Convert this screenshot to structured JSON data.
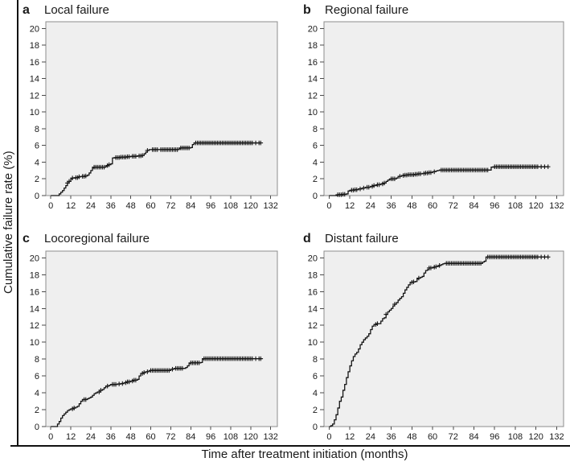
{
  "figure": {
    "y_axis_title": "Cumulative failure rate (%)",
    "x_axis_title": "Time after treatment initiation (months)",
    "colors": {
      "plot_bg": "#efefef",
      "frame": "#8c8c8c",
      "curve": "#151515",
      "tick": "#4a4a4a",
      "text": "#1a1a1a",
      "rule": "#111111"
    }
  },
  "chart_data": [
    {
      "type": "line",
      "style": "step-after",
      "panel_label": "a",
      "title": "Local failure",
      "xlabel": "Time after treatment initiation (months)",
      "ylabel": "Cumulative failure rate (%)",
      "xlim": [
        -3,
        136
      ],
      "ylim": [
        0,
        20.8
      ],
      "xticks": [
        0,
        12,
        24,
        36,
        48,
        60,
        72,
        84,
        96,
        108,
        120,
        132
      ],
      "yticks": [
        0,
        2,
        4,
        6,
        8,
        10,
        12,
        14,
        16,
        18,
        20
      ],
      "step_points": [
        [
          0,
          0
        ],
        [
          4,
          0
        ],
        [
          5,
          0.2
        ],
        [
          6,
          0.4
        ],
        [
          7,
          0.6
        ],
        [
          8,
          0.9
        ],
        [
          9,
          1.2
        ],
        [
          10,
          1.5
        ],
        [
          11,
          1.7
        ],
        [
          12,
          2.0
        ],
        [
          13,
          2.1
        ],
        [
          15,
          2.15
        ],
        [
          17,
          2.25
        ],
        [
          18,
          2.3
        ],
        [
          21,
          2.35
        ],
        [
          22,
          2.45
        ],
        [
          23,
          2.7
        ],
        [
          24,
          3.0
        ],
        [
          25,
          3.3
        ],
        [
          26,
          3.4
        ],
        [
          32,
          3.4
        ],
        [
          33,
          3.5
        ],
        [
          34,
          3.6
        ],
        [
          35,
          3.7
        ],
        [
          36,
          3.8
        ],
        [
          37,
          4.5
        ],
        [
          39,
          4.55
        ],
        [
          42,
          4.6
        ],
        [
          46,
          4.65
        ],
        [
          48,
          4.7
        ],
        [
          52,
          4.75
        ],
        [
          55,
          4.8
        ],
        [
          56,
          5.0
        ],
        [
          57,
          5.2
        ],
        [
          58,
          5.4
        ],
        [
          59,
          5.5
        ],
        [
          76,
          5.5
        ],
        [
          77,
          5.6
        ],
        [
          78,
          5.7
        ],
        [
          84,
          5.75
        ],
        [
          85,
          6.1
        ],
        [
          86,
          6.3
        ],
        [
          126,
          6.3
        ]
      ],
      "censor_marks": [
        10,
        11,
        13,
        15,
        16,
        17,
        19,
        20,
        21,
        26,
        27,
        28,
        29,
        30,
        31,
        32,
        34,
        35,
        39,
        40,
        41,
        42,
        43,
        44,
        45,
        46,
        47,
        49,
        50,
        51,
        53,
        54,
        55,
        58,
        61,
        62,
        63,
        64,
        66,
        67,
        68,
        69,
        70,
        71,
        72,
        73,
        74,
        75,
        76,
        78,
        79,
        80,
        81,
        82,
        83,
        87,
        88,
        89,
        90,
        91,
        92,
        93,
        94,
        95,
        96,
        97,
        98,
        99,
        100,
        101,
        102,
        103,
        104,
        105,
        106,
        107,
        108,
        109,
        110,
        111,
        112,
        113,
        114,
        115,
        116,
        117,
        118,
        119,
        120,
        121,
        123,
        125,
        126
      ]
    },
    {
      "type": "line",
      "style": "step-after",
      "panel_label": "b",
      "title": "Regional failure",
      "xlabel": "Time after treatment initiation (months)",
      "ylabel": "Cumulative failure rate (%)",
      "xlim": [
        -3,
        136
      ],
      "ylim": [
        0,
        20.8
      ],
      "xticks": [
        0,
        12,
        24,
        36,
        48,
        60,
        72,
        84,
        96,
        108,
        120,
        132
      ],
      "yticks": [
        0,
        2,
        4,
        6,
        8,
        10,
        12,
        14,
        16,
        18,
        20
      ],
      "step_points": [
        [
          0,
          0
        ],
        [
          4,
          0
        ],
        [
          5,
          0.1
        ],
        [
          8,
          0.15
        ],
        [
          10,
          0.2
        ],
        [
          11,
          0.55
        ],
        [
          12,
          0.6
        ],
        [
          13,
          0.65
        ],
        [
          15,
          0.7
        ],
        [
          17,
          0.8
        ],
        [
          19,
          0.9
        ],
        [
          21,
          1.0
        ],
        [
          24,
          1.1
        ],
        [
          26,
          1.2
        ],
        [
          28,
          1.3
        ],
        [
          30,
          1.4
        ],
        [
          32,
          1.5
        ],
        [
          33,
          1.7
        ],
        [
          34,
          1.85
        ],
        [
          35,
          1.95
        ],
        [
          36,
          2.0
        ],
        [
          39,
          2.1
        ],
        [
          40,
          2.3
        ],
        [
          42,
          2.4
        ],
        [
          44,
          2.45
        ],
        [
          46,
          2.5
        ],
        [
          50,
          2.55
        ],
        [
          52,
          2.6
        ],
        [
          54,
          2.65
        ],
        [
          56,
          2.7
        ],
        [
          58,
          2.75
        ],
        [
          60,
          2.85
        ],
        [
          62,
          2.95
        ],
        [
          63,
          3.0
        ],
        [
          64,
          3.05
        ],
        [
          93,
          3.05
        ],
        [
          94,
          3.4
        ],
        [
          96,
          3.45
        ],
        [
          127,
          3.45
        ]
      ],
      "censor_marks": [
        5,
        6,
        7,
        8,
        9,
        13,
        14,
        15,
        16,
        18,
        20,
        22,
        23,
        25,
        26,
        28,
        29,
        31,
        32,
        36,
        37,
        38,
        41,
        43,
        44,
        45,
        46,
        47,
        48,
        49,
        50,
        51,
        52,
        53,
        55,
        56,
        57,
        58,
        59,
        61,
        65,
        66,
        67,
        68,
        69,
        70,
        71,
        72,
        73,
        74,
        75,
        76,
        77,
        78,
        79,
        80,
        81,
        82,
        83,
        84,
        85,
        86,
        87,
        88,
        89,
        90,
        91,
        92,
        96,
        97,
        98,
        99,
        100,
        101,
        102,
        103,
        104,
        105,
        106,
        107,
        108,
        109,
        110,
        111,
        112,
        113,
        114,
        115,
        116,
        117,
        118,
        119,
        120,
        121,
        123,
        125,
        127
      ]
    },
    {
      "type": "line",
      "style": "step-after",
      "panel_label": "c",
      "title": "Locoregional failure",
      "xlabel": "Time after treatment initiation (months)",
      "ylabel": "Cumulative failure rate (%)",
      "xlim": [
        -3,
        136
      ],
      "ylim": [
        0,
        20.8
      ],
      "xticks": [
        0,
        12,
        24,
        36,
        48,
        60,
        72,
        84,
        96,
        108,
        120,
        132
      ],
      "yticks": [
        0,
        2,
        4,
        6,
        8,
        10,
        12,
        14,
        16,
        18,
        20
      ],
      "step_points": [
        [
          0,
          0
        ],
        [
          3,
          0
        ],
        [
          4,
          0.3
        ],
        [
          5,
          0.6
        ],
        [
          6,
          1.0
        ],
        [
          7,
          1.3
        ],
        [
          8,
          1.5
        ],
        [
          9,
          1.7
        ],
        [
          10,
          1.9
        ],
        [
          11,
          2.0
        ],
        [
          12,
          2.1
        ],
        [
          14,
          2.2
        ],
        [
          15,
          2.3
        ],
        [
          16,
          2.4
        ],
        [
          17,
          2.7
        ],
        [
          18,
          3.0
        ],
        [
          19,
          3.2
        ],
        [
          22,
          3.3
        ],
        [
          23,
          3.4
        ],
        [
          24,
          3.5
        ],
        [
          25,
          3.7
        ],
        [
          26,
          3.9
        ],
        [
          27,
          4.0
        ],
        [
          28,
          4.1
        ],
        [
          30,
          4.3
        ],
        [
          31,
          4.4
        ],
        [
          32,
          4.6
        ],
        [
          33,
          4.8
        ],
        [
          35,
          4.9
        ],
        [
          36,
          5.0
        ],
        [
          40,
          5.05
        ],
        [
          42,
          5.1
        ],
        [
          44,
          5.2
        ],
        [
          46,
          5.3
        ],
        [
          48,
          5.4
        ],
        [
          50,
          5.5
        ],
        [
          52,
          5.6
        ],
        [
          53,
          6.0
        ],
        [
          54,
          6.3
        ],
        [
          56,
          6.4
        ],
        [
          57,
          6.5
        ],
        [
          59,
          6.6
        ],
        [
          60,
          6.65
        ],
        [
          71,
          6.65
        ],
        [
          72,
          6.8
        ],
        [
          74,
          6.9
        ],
        [
          80,
          6.9
        ],
        [
          81,
          7.0
        ],
        [
          82,
          7.2
        ],
        [
          83,
          7.5
        ],
        [
          84,
          7.55
        ],
        [
          90,
          7.6
        ],
        [
          91,
          8.0
        ],
        [
          92,
          8.05
        ],
        [
          127,
          8.05
        ]
      ],
      "censor_marks": [
        13,
        14,
        20,
        21,
        29,
        30,
        34,
        37,
        38,
        39,
        41,
        43,
        45,
        46,
        47,
        49,
        50,
        51,
        55,
        56,
        58,
        60,
        61,
        62,
        63,
        64,
        65,
        66,
        67,
        68,
        69,
        70,
        71,
        73,
        75,
        76,
        77,
        78,
        79,
        84,
        85,
        86,
        87,
        88,
        89,
        92,
        93,
        94,
        95,
        96,
        97,
        98,
        99,
        100,
        101,
        102,
        103,
        104,
        105,
        106,
        107,
        108,
        109,
        110,
        111,
        112,
        113,
        114,
        115,
        116,
        117,
        118,
        119,
        120,
        121,
        123,
        125,
        126
      ]
    },
    {
      "type": "line",
      "style": "step-after",
      "panel_label": "d",
      "title": "Distant failure",
      "xlabel": "Time after treatment initiation (months)",
      "ylabel": "Cumulative failure rate (%)",
      "xlim": [
        -3,
        136
      ],
      "ylim": [
        0,
        20.8
      ],
      "xticks": [
        0,
        12,
        24,
        36,
        48,
        60,
        72,
        84,
        96,
        108,
        120,
        132
      ],
      "yticks": [
        0,
        2,
        4,
        6,
        8,
        10,
        12,
        14,
        16,
        18,
        20
      ],
      "step_points": [
        [
          0,
          0
        ],
        [
          1,
          0.1
        ],
        [
          2,
          0.3
        ],
        [
          3,
          0.8
        ],
        [
          4,
          1.4
        ],
        [
          5,
          2.2
        ],
        [
          6,
          3.0
        ],
        [
          7,
          3.5
        ],
        [
          8,
          4.3
        ],
        [
          9,
          5.0
        ],
        [
          10,
          5.8
        ],
        [
          11,
          6.5
        ],
        [
          12,
          7.2
        ],
        [
          13,
          7.8
        ],
        [
          14,
          8.3
        ],
        [
          15,
          8.6
        ],
        [
          16,
          8.8
        ],
        [
          17,
          9.2
        ],
        [
          18,
          9.7
        ],
        [
          19,
          10.0
        ],
        [
          20,
          10.3
        ],
        [
          21,
          10.5
        ],
        [
          22,
          10.7
        ],
        [
          23,
          11.0
        ],
        [
          24,
          11.5
        ],
        [
          25,
          11.9
        ],
        [
          26,
          12.1
        ],
        [
          28,
          12.2
        ],
        [
          30,
          12.5
        ],
        [
          31,
          12.8
        ],
        [
          32,
          12.9
        ],
        [
          33,
          13.3
        ],
        [
          34,
          13.6
        ],
        [
          35,
          13.8
        ],
        [
          36,
          14.0
        ],
        [
          37,
          14.3
        ],
        [
          38,
          14.5
        ],
        [
          39,
          14.7
        ],
        [
          40,
          15.0
        ],
        [
          41,
          15.2
        ],
        [
          42,
          15.4
        ],
        [
          43,
          15.8
        ],
        [
          44,
          16.2
        ],
        [
          45,
          16.5
        ],
        [
          46,
          16.8
        ],
        [
          47,
          17.1
        ],
        [
          49,
          17.15
        ],
        [
          50,
          17.2
        ],
        [
          51,
          17.5
        ],
        [
          52,
          17.6
        ],
        [
          53,
          17.7
        ],
        [
          54,
          17.8
        ],
        [
          55,
          18.2
        ],
        [
          56,
          18.5
        ],
        [
          57,
          18.6
        ],
        [
          58,
          18.8
        ],
        [
          60,
          18.85
        ],
        [
          61,
          18.9
        ],
        [
          62,
          18.95
        ],
        [
          63,
          19.0
        ],
        [
          64,
          19.1
        ],
        [
          65,
          19.2
        ],
        [
          66,
          19.3
        ],
        [
          67,
          19.35
        ],
        [
          88,
          19.35
        ],
        [
          89,
          19.5
        ],
        [
          90,
          19.6
        ],
        [
          91,
          20.1
        ],
        [
          127,
          20.1
        ]
      ],
      "censor_marks": [
        27,
        28,
        33,
        38,
        48,
        49,
        52,
        58,
        59,
        61,
        62,
        64,
        68,
        69,
        70,
        71,
        72,
        73,
        74,
        75,
        76,
        77,
        78,
        79,
        80,
        81,
        82,
        83,
        84,
        85,
        86,
        87,
        88,
        92,
        93,
        94,
        95,
        96,
        97,
        98,
        99,
        100,
        101,
        102,
        103,
        104,
        105,
        106,
        107,
        108,
        109,
        110,
        111,
        112,
        113,
        114,
        115,
        116,
        117,
        118,
        119,
        120,
        121,
        123,
        125,
        127
      ]
    }
  ]
}
